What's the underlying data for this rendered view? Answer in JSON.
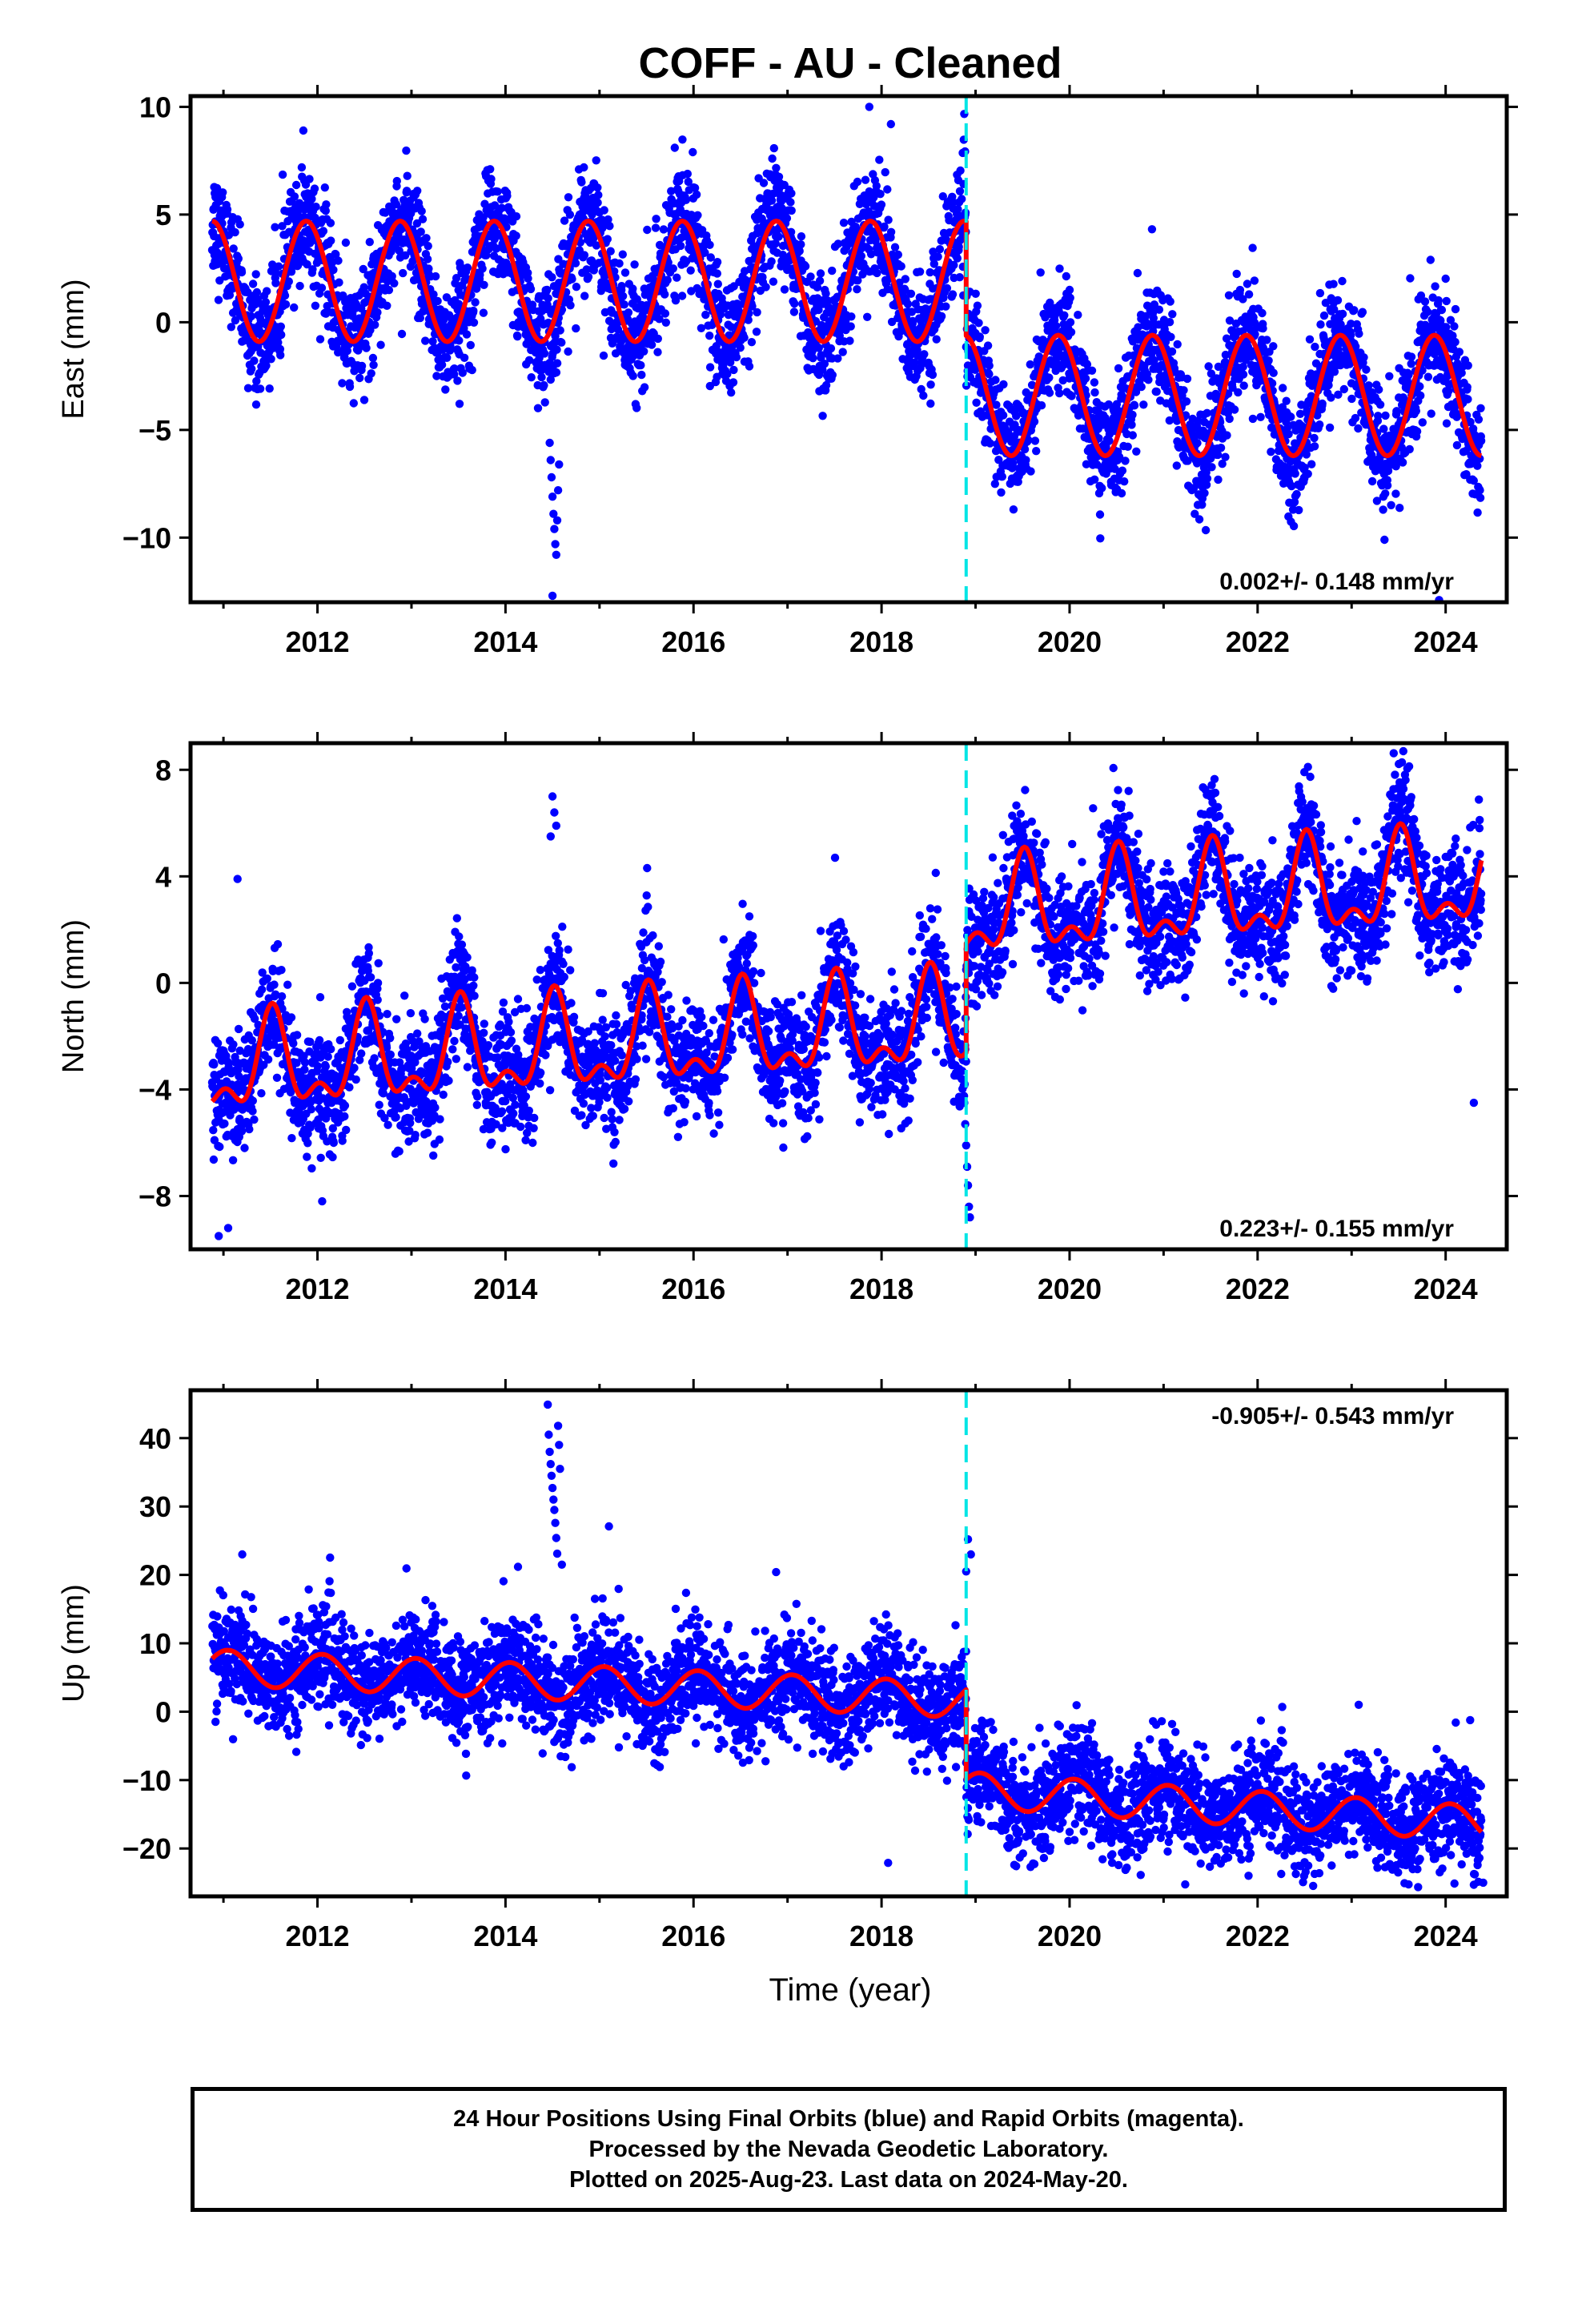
{
  "title": "COFF  - AU - Cleaned",
  "x_axis_label": "Time (year)",
  "footer": {
    "line1": "24 Hour Positions Using Final Orbits (blue) and Rapid Orbits (magenta).",
    "line2": "Processed by the Nevada Geodetic Laboratory.",
    "line3": "Plotted on 2025-Aug-23. Last data on 2024-May-20."
  },
  "colors": {
    "data_points": "#0000ff",
    "model_fit": "#ff0000",
    "discontinuity": "#00e5e5",
    "frame": "#000000"
  },
  "chart_data": [
    {
      "type": "scatter",
      "name": "east",
      "ylabel": "East (mm)",
      "rate_label": "0.002+/- 0.148 mm/yr",
      "rate_position": "bottom-right",
      "xlim": [
        2010.65,
        2024.65
      ],
      "ylim": [
        -13,
        10.5
      ],
      "x_ticks": [
        2012,
        2014,
        2016,
        2018,
        2020,
        2022,
        2024
      ],
      "y_ticks": [
        -10,
        -5,
        0,
        5,
        10
      ],
      "grid": false,
      "discontinuity_x": [
        2018.9
      ],
      "model": {
        "segments": [
          {
            "x_start": 2010.88,
            "x_end": 2018.9,
            "offset": 1.9,
            "trend": 0.0,
            "annual_amp": 2.8,
            "annual_peak": 0.88,
            "semi_amp": 0.0,
            "semi_peak": 0.0
          },
          {
            "x_start": 2018.9,
            "x_end": 2024.38,
            "offset": -3.4,
            "trend": 0.0,
            "annual_amp": 2.8,
            "annual_peak": 0.88,
            "semi_amp": 0.0,
            "semi_peak": 0.0
          }
        ]
      },
      "scatter_std": 1.3,
      "points": [
        {
          "x": 2014.47,
          "y": -5.6
        },
        {
          "x": 2014.48,
          "y": -6.4
        },
        {
          "x": 2014.49,
          "y": -7.2
        },
        {
          "x": 2014.5,
          "y": -8.1
        },
        {
          "x": 2014.51,
          "y": -8.9
        },
        {
          "x": 2014.52,
          "y": -9.6
        },
        {
          "x": 2014.53,
          "y": -10.3
        },
        {
          "x": 2014.54,
          "y": -10.8
        },
        {
          "x": 2014.55,
          "y": -9.2
        },
        {
          "x": 2014.56,
          "y": -7.8
        },
        {
          "x": 2014.57,
          "y": -6.6
        },
        {
          "x": 2014.5,
          "y": -12.7
        },
        {
          "x": 2018.1,
          "y": 9.2
        },
        {
          "x": 2017.87,
          "y": 10.0
        },
        {
          "x": 2011.85,
          "y": 8.9
        },
        {
          "x": 2015.8,
          "y": 8.1
        },
        {
          "x": 2023.93,
          "y": -12.9
        },
        {
          "x": 2023.35,
          "y": -10.1
        }
      ]
    },
    {
      "type": "scatter",
      "name": "north",
      "ylabel": "North (mm)",
      "rate_label": "0.223+/- 0.155 mm/yr",
      "rate_position": "bottom-right",
      "xlim": [
        2010.65,
        2024.65
      ],
      "ylim": [
        -10,
        9
      ],
      "x_ticks": [
        2012,
        2014,
        2016,
        2018,
        2020,
        2022,
        2024
      ],
      "y_ticks": [
        -8,
        -4,
        0,
        4,
        8
      ],
      "grid": false,
      "discontinuity_x": [
        2018.9
      ],
      "model": {
        "segments": [
          {
            "x_start": 2010.88,
            "x_end": 2018.9,
            "offset": -3.3,
            "trend": 0.22,
            "annual_amp": 1.55,
            "annual_peak": 0.52,
            "semi_amp": 0.85,
            "semi_peak": 0.52
          },
          {
            "x_start": 2018.9,
            "x_end": 2024.38,
            "offset": 0.8,
            "trend": 0.22,
            "annual_amp": 1.55,
            "annual_peak": 0.52,
            "semi_amp": 0.85,
            "semi_peak": 0.52
          }
        ]
      },
      "scatter_std": 1.1,
      "points": [
        {
          "x": 2018.88,
          "y": -4.5
        },
        {
          "x": 2018.89,
          "y": -5.3
        },
        {
          "x": 2018.9,
          "y": -6.1
        },
        {
          "x": 2018.91,
          "y": -6.9
        },
        {
          "x": 2018.92,
          "y": -7.6
        },
        {
          "x": 2018.93,
          "y": -8.4
        },
        {
          "x": 2018.94,
          "y": -8.8
        },
        {
          "x": 2014.5,
          "y": 7.0
        },
        {
          "x": 2014.52,
          "y": 6.4
        },
        {
          "x": 2014.54,
          "y": 5.9
        },
        {
          "x": 2014.48,
          "y": 5.5
        },
        {
          "x": 2023.55,
          "y": 8.7
        },
        {
          "x": 2021.5,
          "y": 7.1
        },
        {
          "x": 2011.15,
          "y": 3.9
        },
        {
          "x": 2010.95,
          "y": -9.5
        },
        {
          "x": 2011.05,
          "y": -9.2
        },
        {
          "x": 2012.05,
          "y": -8.2
        },
        {
          "x": 2024.3,
          "y": -4.5
        }
      ]
    },
    {
      "type": "scatter",
      "name": "up",
      "ylabel": "Up (mm)",
      "rate_label": "-0.905+/- 0.543 mm/yr",
      "rate_position": "top-right",
      "xlim": [
        2010.65,
        2024.65
      ],
      "ylim": [
        -27,
        47
      ],
      "x_ticks": [
        2012,
        2014,
        2016,
        2018,
        2020,
        2022,
        2024
      ],
      "y_ticks": [
        -20,
        -10,
        0,
        10,
        20,
        30,
        40
      ],
      "grid": false,
      "discontinuity_x": [
        2018.9
      ],
      "model": {
        "segments": [
          {
            "x_start": 2010.88,
            "x_end": 2018.9,
            "offset": 6.5,
            "trend": -0.6,
            "annual_amp": 2.6,
            "annual_peak": 0.05,
            "semi_amp": 0.0,
            "semi_peak": 0.0
          },
          {
            "x_start": 2018.9,
            "x_end": 2024.38,
            "offset": -4.2,
            "trend": -0.9,
            "annual_amp": 2.6,
            "annual_peak": 0.05,
            "semi_amp": 0.0,
            "semi_peak": 0.0
          }
        ]
      },
      "scatter_std": 3.8,
      "points": [
        {
          "x": 2014.45,
          "y": 44.9
        },
        {
          "x": 2014.46,
          "y": 40.5
        },
        {
          "x": 2014.47,
          "y": 38.0
        },
        {
          "x": 2014.48,
          "y": 36.2
        },
        {
          "x": 2014.49,
          "y": 34.5
        },
        {
          "x": 2014.5,
          "y": 32.7
        },
        {
          "x": 2014.51,
          "y": 31.0
        },
        {
          "x": 2014.52,
          "y": 29.5
        },
        {
          "x": 2014.53,
          "y": 27.6
        },
        {
          "x": 2014.54,
          "y": 25.4
        },
        {
          "x": 2014.55,
          "y": 23.1
        },
        {
          "x": 2014.56,
          "y": 41.8
        },
        {
          "x": 2014.57,
          "y": 39.0
        },
        {
          "x": 2014.58,
          "y": 35.5
        },
        {
          "x": 2014.6,
          "y": 21.5
        },
        {
          "x": 2018.9,
          "y": 20.5
        },
        {
          "x": 2018.92,
          "y": 25.2
        },
        {
          "x": 2018.95,
          "y": 23.0
        },
        {
          "x": 2015.1,
          "y": 27.1
        },
        {
          "x": 2011.2,
          "y": 23.0
        },
        {
          "x": 2024.3,
          "y": -25.3
        },
        {
          "x": 2024.4,
          "y": -25.0
        },
        {
          "x": 2018.07,
          "y": -22.1
        },
        {
          "x": 2022.5,
          "y": -22.0
        }
      ]
    }
  ]
}
